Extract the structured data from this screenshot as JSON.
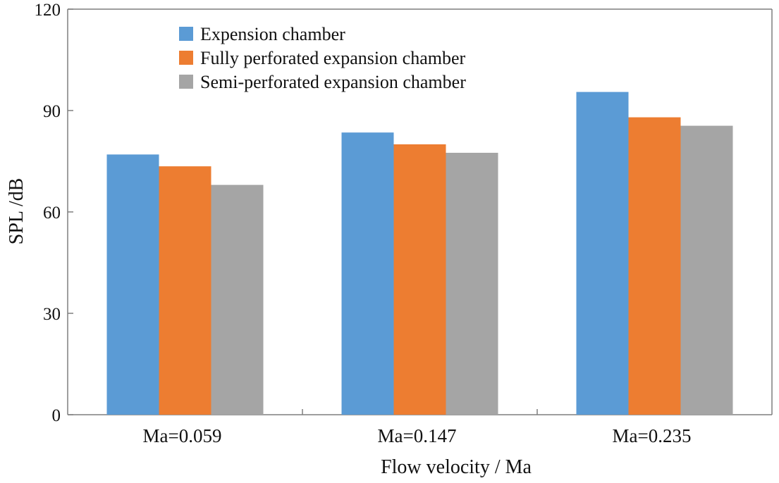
{
  "chart_data": {
    "type": "bar",
    "title": "",
    "xlabel": "Flow velocity / Ma",
    "ylabel": "SPL /dB",
    "categories": [
      "Ma=0.059",
      "Ma=0.147",
      "Ma=0.235"
    ],
    "series": [
      {
        "name": "Expension chamber",
        "values": [
          77,
          83.5,
          95.5
        ],
        "color": "#5b9bd5"
      },
      {
        "name": "Fully perforated expansion chamber",
        "values": [
          73.5,
          80,
          88
        ],
        "color": "#ed7d31"
      },
      {
        "name": "Semi-perforated expansion chamber",
        "values": [
          68,
          77.5,
          85.5
        ],
        "color": "#a5a5a5"
      }
    ],
    "ylim": [
      0,
      120
    ],
    "yticks": [
      0,
      30,
      60,
      90,
      120
    ],
    "yticks_labels": [
      "0",
      "30",
      "60",
      "90",
      "120"
    ],
    "grid": false,
    "legend_position": "top-left"
  }
}
